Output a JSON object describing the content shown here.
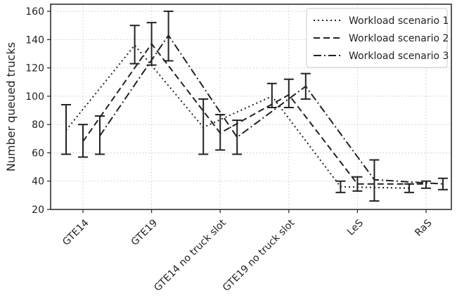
{
  "chart_data": {
    "type": "line",
    "title": "",
    "xlabel": "",
    "ylabel": "Number queued trucks",
    "ylim": [
      20,
      165
    ],
    "yticks": [
      20,
      40,
      60,
      80,
      100,
      120,
      140,
      160
    ],
    "categories": [
      "GTE14",
      "GTE19",
      "GTE14 no truck slot",
      "GTE19 no truck slot",
      "LeS",
      "RaS"
    ],
    "grid": true,
    "legend_position": "top-right",
    "series": [
      {
        "name": "Workload scenario 1",
        "style": "dotted",
        "values": [
          76,
          136,
          78,
          100,
          36,
          35
        ],
        "err_low": [
          59,
          123,
          59,
          92,
          32,
          32
        ],
        "err_high": [
          94,
          150,
          98,
          109,
          40,
          38
        ]
      },
      {
        "name": "Workload scenario 2",
        "style": "dashed",
        "values": [
          68,
          137,
          74,
          101,
          38,
          38
        ],
        "err_low": [
          57,
          122,
          62,
          92,
          33,
          35
        ],
        "err_high": [
          80,
          152,
          87,
          112,
          43,
          40
        ]
      },
      {
        "name": "Workload scenario 3",
        "style": "dashdot",
        "values": [
          72,
          143,
          71,
          107,
          41,
          38
        ],
        "err_low": [
          59,
          125,
          59,
          98,
          26,
          34
        ],
        "err_high": [
          86,
          160,
          83,
          116,
          55,
          42
        ]
      }
    ]
  }
}
